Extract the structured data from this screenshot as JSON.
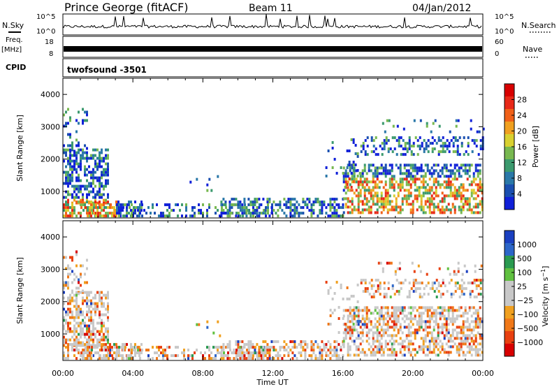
{
  "header": {
    "station": "Prince George (fitACF)",
    "beam": "Beam 11",
    "date": "04/Jan/2012"
  },
  "left_labels": {
    "nsky": "N.Sky",
    "freq_line1": "Freq.",
    "freq_line2": "[MHz]",
    "cpid": "CPID"
  },
  "right_labels": {
    "nsearch": "N.Search",
    "nave": "Nave"
  },
  "strips": {
    "noise": {
      "left_ticks": [
        "10^5",
        "10^0"
      ],
      "right_ticks": [
        "10^5",
        "10^0"
      ]
    },
    "freq": {
      "left_ticks": [
        "18",
        "8"
      ],
      "right_ticks": [
        "60",
        "0"
      ]
    },
    "cpid_text": "twofsound -3501"
  },
  "chart_data": [
    {
      "type": "heatmap",
      "name": "power",
      "ylabel": "Slant Range [km]",
      "y_ticks": [
        "1000",
        "2000",
        "3000",
        "4000"
      ],
      "ylim": [
        180,
        4500
      ],
      "x_ticks": [
        "00:00",
        "04:00",
        "08:00",
        "12:00",
        "16:00",
        "20:00",
        "00:00"
      ],
      "xlim_hours": [
        0,
        24
      ],
      "colorbar": {
        "label": "Power [dB]",
        "ticks": [
          "28",
          "24",
          "20",
          "16",
          "12",
          "8",
          "4"
        ],
        "range": [
          0,
          30
        ],
        "colors": [
          "#1020d8",
          "#1a4fb0",
          "#2a78a8",
          "#3c9a6e",
          "#78b850",
          "#d8d030",
          "#f0a020",
          "#f06018",
          "#e82818",
          "#d80000"
        ]
      }
    },
    {
      "type": "heatmap",
      "name": "velocity",
      "ylabel": "Slant Range [km]",
      "y_ticks": [
        "1000",
        "2000",
        "3000",
        "4000"
      ],
      "ylim": [
        180,
        4500
      ],
      "x_ticks": [
        "00:00",
        "04:00",
        "08:00",
        "12:00",
        "16:00",
        "20:00",
        "00:00"
      ],
      "xlim_hours": [
        0,
        24
      ],
      "xlabel": "Time UT",
      "colorbar": {
        "label": "Velocity [m s^-1]",
        "ticks": [
          "1000",
          "500",
          "100",
          "25",
          "−25",
          "−100",
          "−500",
          "−1000"
        ],
        "colors": [
          "#1a3fc0",
          "#2c66c8",
          "#2a9a50",
          "#60c040",
          "#c8c8c8",
          "#c8c8c8",
          "#f0a020",
          "#f07818",
          "#e84010",
          "#d80000"
        ]
      }
    }
  ]
}
